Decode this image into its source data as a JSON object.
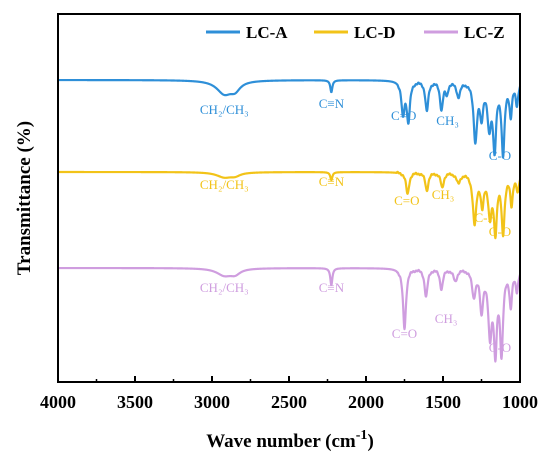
{
  "chart_data": {
    "type": "line",
    "xlabel": "Wave number (cm",
    "xlabel_sup": "-1",
    "xlabel_close": ")",
    "ylabel": "Transmittance (%)",
    "x_range": [
      4000,
      1000
    ],
    "x_reversed": true,
    "grid": false,
    "legend_position": "top-right",
    "x_ticks": [
      {
        "value": 4000,
        "label": "4000"
      },
      {
        "value": 3500,
        "label": "3500"
      },
      {
        "value": 3000,
        "label": "3000"
      },
      {
        "value": 2500,
        "label": "2500"
      },
      {
        "value": 2000,
        "label": "2000"
      },
      {
        "value": 1500,
        "label": "1500"
      },
      {
        "value": 1000,
        "label": "1000"
      }
    ],
    "series": [
      {
        "name": "LC-A",
        "color": "#2e8fd8",
        "peaks": [
          {
            "x": 2920,
            "depth": 0.13,
            "width": 60
          },
          {
            "x": 2850,
            "depth": 0.08,
            "width": 40
          },
          {
            "x": 2225,
            "depth": 0.12,
            "width": 8
          },
          {
            "x": 1760,
            "depth": 0.33,
            "width": 12
          },
          {
            "x": 1725,
            "depth": 0.4,
            "width": 12
          },
          {
            "x": 1605,
            "depth": 0.3,
            "width": 12
          },
          {
            "x": 1510,
            "depth": 0.28,
            "width": 12
          },
          {
            "x": 1475,
            "depth": 0.12,
            "width": 10
          },
          {
            "x": 1400,
            "depth": 0.15,
            "width": 15
          },
          {
            "x": 1290,
            "depth": 0.58,
            "width": 14
          },
          {
            "x": 1250,
            "depth": 0.32,
            "width": 12
          },
          {
            "x": 1200,
            "depth": 0.43,
            "width": 14
          },
          {
            "x": 1165,
            "depth": 0.65,
            "width": 12
          },
          {
            "x": 1110,
            "depth": 0.71,
            "width": 12
          },
          {
            "x": 1060,
            "depth": 0.32,
            "width": 10
          },
          {
            "x": 1020,
            "depth": 0.22,
            "width": 10
          }
        ],
        "annotations": [
          {
            "label": "CH₂/CH₃",
            "x": 2920,
            "depth": 0.34
          },
          {
            "label": "C≡N",
            "x": 2225,
            "depth": 0.28
          },
          {
            "label": "C=O",
            "x": 1755,
            "depth": 0.4
          },
          {
            "label": "CH₃",
            "x": 1470,
            "depth": 0.45
          },
          {
            "label": "C-O",
            "x": 1130,
            "depth": 0.8
          }
        ]
      },
      {
        "name": "LC-D",
        "color": "#f2c318",
        "peaks": [
          {
            "x": 2920,
            "depth": 0.05,
            "width": 60
          },
          {
            "x": 2850,
            "depth": 0.03,
            "width": 40
          },
          {
            "x": 2225,
            "depth": 0.08,
            "width": 8
          },
          {
            "x": 1730,
            "depth": 0.22,
            "width": 12
          },
          {
            "x": 1605,
            "depth": 0.18,
            "width": 12
          },
          {
            "x": 1505,
            "depth": 0.15,
            "width": 12
          },
          {
            "x": 1400,
            "depth": 0.1,
            "width": 15
          },
          {
            "x": 1295,
            "depth": 0.5,
            "width": 14
          },
          {
            "x": 1245,
            "depth": 0.3,
            "width": 12
          },
          {
            "x": 1195,
            "depth": 0.4,
            "width": 14
          },
          {
            "x": 1160,
            "depth": 0.55,
            "width": 12
          },
          {
            "x": 1110,
            "depth": 0.58,
            "width": 12
          },
          {
            "x": 1055,
            "depth": 0.3,
            "width": 10
          },
          {
            "x": 1015,
            "depth": 0.18,
            "width": 10
          }
        ],
        "annotations": [
          {
            "label": "CH₂/CH₃",
            "x": 2920,
            "depth": 0.17
          },
          {
            "label": "C≡N",
            "x": 2225,
            "depth": 0.14
          },
          {
            "label": "C=O",
            "x": 1735,
            "depth": 0.33
          },
          {
            "label": "CH₃",
            "x": 1500,
            "depth": 0.27
          },
          {
            "label": "C-F",
            "x": 1230,
            "depth": 0.5
          },
          {
            "label": "C-O",
            "x": 1130,
            "depth": 0.64
          }
        ]
      },
      {
        "name": "LC-Z",
        "color": "#cf9ddf",
        "peaks": [
          {
            "x": 2920,
            "depth": 0.07,
            "width": 60
          },
          {
            "x": 2850,
            "depth": 0.05,
            "width": 40
          },
          {
            "x": 2225,
            "depth": 0.17,
            "width": 8
          },
          {
            "x": 1750,
            "depth": 0.6,
            "width": 12
          },
          {
            "x": 1610,
            "depth": 0.28,
            "width": 12
          },
          {
            "x": 1510,
            "depth": 0.2,
            "width": 12
          },
          {
            "x": 1420,
            "depth": 0.12,
            "width": 15
          },
          {
            "x": 1300,
            "depth": 0.26,
            "width": 14
          },
          {
            "x": 1250,
            "depth": 0.4,
            "width": 12
          },
          {
            "x": 1195,
            "depth": 0.62,
            "width": 14
          },
          {
            "x": 1160,
            "depth": 0.77,
            "width": 12
          },
          {
            "x": 1120,
            "depth": 0.8,
            "width": 12
          },
          {
            "x": 1060,
            "depth": 0.35,
            "width": 10
          },
          {
            "x": 1020,
            "depth": 0.2,
            "width": 10
          }
        ],
        "annotations": [
          {
            "label": "CH₂/CH₃",
            "x": 2920,
            "depth": 0.24
          },
          {
            "label": "C≡N",
            "x": 2225,
            "depth": 0.24
          },
          {
            "label": "C=O",
            "x": 1750,
            "depth": 0.7
          },
          {
            "label": "CH₃",
            "x": 1480,
            "depth": 0.55
          },
          {
            "label": "C-O",
            "x": 1130,
            "depth": 0.84
          }
        ]
      }
    ]
  }
}
